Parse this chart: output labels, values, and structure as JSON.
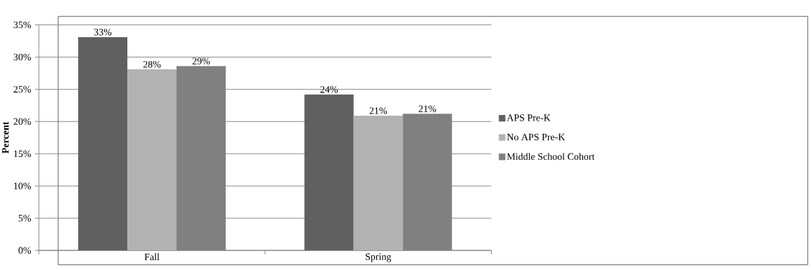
{
  "chart_data": {
    "type": "bar",
    "ylabel": "Percent",
    "categories": [
      "Fall",
      "Spring"
    ],
    "series": [
      {
        "name": "APS Pre-K",
        "color": "#606060",
        "values": [
          33.1,
          24.2
        ],
        "value_labels": [
          "33%",
          "24%"
        ]
      },
      {
        "name": "No APS Pre-K",
        "color": "#b2b2b2",
        "values": [
          28.1,
          20.9
        ],
        "value_labels": [
          "28%",
          "21%"
        ]
      },
      {
        "name": "Middle School Cohort",
        "color": "#808080",
        "values": [
          28.6,
          21.2
        ],
        "value_labels": [
          "29%",
          "21%"
        ]
      }
    ],
    "ylim": [
      0,
      35
    ],
    "yticks": [
      {
        "value": 0,
        "label": "0%"
      },
      {
        "value": 5,
        "label": "5%"
      },
      {
        "value": 10,
        "label": "10%"
      },
      {
        "value": 15,
        "label": "15%"
      },
      {
        "value": 20,
        "label": "20%"
      },
      {
        "value": 25,
        "label": "25%"
      },
      {
        "value": 30,
        "label": "30%"
      },
      {
        "value": 35,
        "label": "35%"
      }
    ],
    "grid": "y",
    "legend": "right"
  }
}
